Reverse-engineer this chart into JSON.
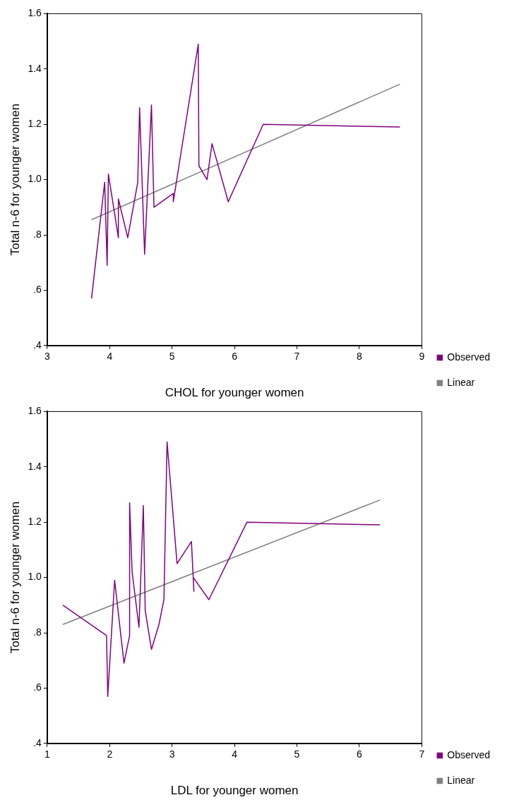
{
  "chart_data": [
    {
      "type": "line",
      "xlabel": "CHOL for younger women",
      "ylabel": "Total n-6 for younger women",
      "xlim": [
        3,
        9
      ],
      "xticks": [
        3,
        4,
        5,
        6,
        7,
        8,
        9
      ],
      "ylim": [
        0.4,
        1.6
      ],
      "yticks": [
        {
          "value": 0.4,
          "label": ".4"
        },
        {
          "value": 0.6,
          "label": ".6"
        },
        {
          "value": 0.8,
          "label": ".8"
        },
        {
          "value": 1.0,
          "label": "1.0"
        },
        {
          "value": 1.2,
          "label": "1.2"
        },
        {
          "value": 1.4,
          "label": "1.4"
        },
        {
          "value": 1.6,
          "label": "1.6"
        }
      ],
      "legend": "right",
      "marker": "none",
      "series": [
        {
          "name": "Observed",
          "color": "#800080",
          "x": [
            3.71,
            3.92,
            3.96,
            3.98,
            4.14,
            4.14,
            4.29,
            4.45,
            4.48,
            4.56,
            4.67,
            4.71,
            5.02,
            5.02,
            5.11,
            5.42,
            5.43,
            5.56,
            5.64,
            5.9,
            6.46,
            8.65
          ],
          "values": [
            0.57,
            0.99,
            0.69,
            1.02,
            0.79,
            0.93,
            0.79,
            0.99,
            1.26,
            0.73,
            1.27,
            0.9,
            0.95,
            0.92,
            1.05,
            1.49,
            1.05,
            1.0,
            1.13,
            0.92,
            1.2,
            1.19
          ]
        },
        {
          "name": "Linear",
          "color": "#808080",
          "x": [
            3.71,
            8.65
          ],
          "values": [
            0.855,
            1.345
          ]
        }
      ]
    },
    {
      "type": "line",
      "xlabel": "LDL for younger women",
      "ylabel": "Total n-6 for younger women",
      "xlim": [
        1,
        7
      ],
      "xticks": [
        1,
        2,
        3,
        4,
        5,
        6,
        7
      ],
      "ylim": [
        0.4,
        1.6
      ],
      "yticks": [
        {
          "value": 0.4,
          "label": ".4"
        },
        {
          "value": 0.6,
          "label": ".6"
        },
        {
          "value": 0.8,
          "label": ".8"
        },
        {
          "value": 1.0,
          "label": "1.0"
        },
        {
          "value": 1.2,
          "label": "1.2"
        },
        {
          "value": 1.4,
          "label": "1.4"
        },
        {
          "value": 1.6,
          "label": "1.6"
        }
      ],
      "legend": "right",
      "marker": "none",
      "series": [
        {
          "name": "Observed",
          "color": "#800080",
          "x": [
            1.25,
            1.95,
            1.97,
            2.08,
            2.23,
            2.32,
            2.32,
            2.36,
            2.47,
            2.54,
            2.57,
            2.67,
            2.79,
            2.87,
            2.92,
            3.08,
            3.31,
            3.35,
            3.34,
            3.59,
            4.2,
            6.33
          ],
          "values": [
            0.9,
            0.79,
            0.57,
            0.99,
            0.69,
            0.79,
            1.27,
            1.02,
            0.82,
            1.26,
            0.88,
            0.74,
            0.83,
            0.92,
            1.49,
            1.05,
            1.13,
            0.95,
            1.0,
            0.92,
            1.2,
            1.19
          ]
        },
        {
          "name": "Linear",
          "color": "#808080",
          "x": [
            1.25,
            6.33
          ],
          "values": [
            0.83,
            1.28
          ]
        }
      ]
    }
  ]
}
